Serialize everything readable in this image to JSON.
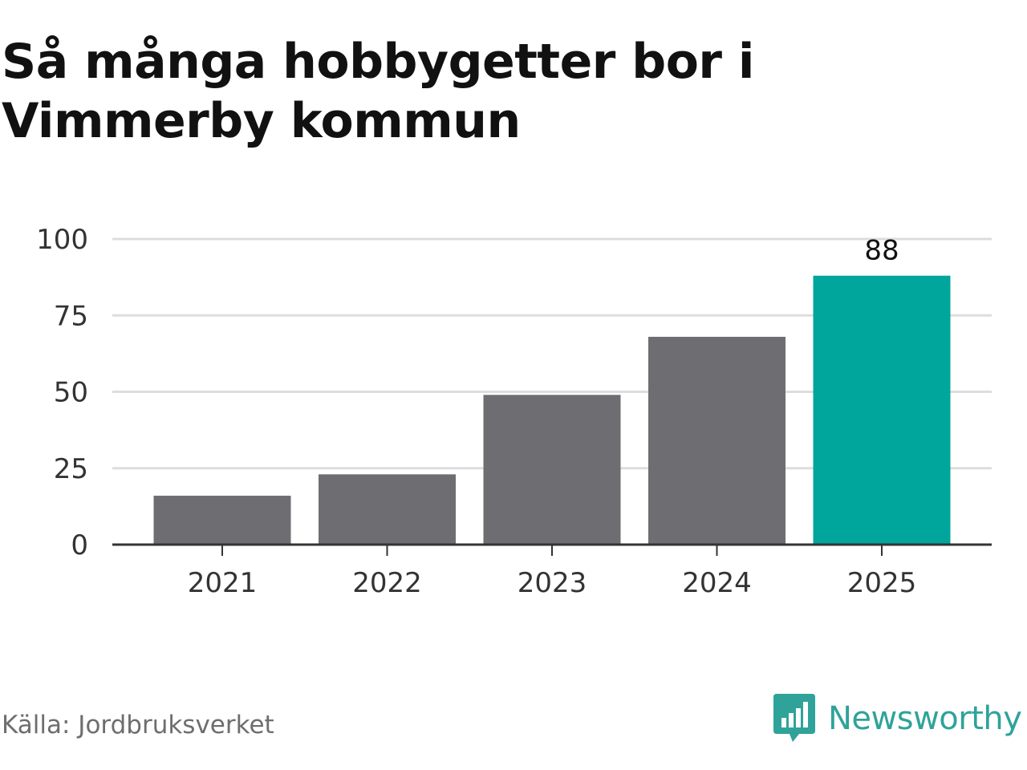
{
  "title": "Så många hobbygetter bor i Vimmerby kommun",
  "source": "Källa: Jordbruksverket",
  "logo": {
    "name": "Newsworthy",
    "icon": "newsworthy-logo-icon",
    "color": "#2fa39a"
  },
  "colors": {
    "bar": "#6e6d72",
    "highlight": "#00a59b",
    "grid": "#dddddd",
    "axis": "#333333"
  },
  "chart_data": {
    "type": "bar",
    "categories": [
      "2021",
      "2022",
      "2023",
      "2024",
      "2025"
    ],
    "values": [
      16,
      23,
      49,
      68,
      88
    ],
    "highlight_index": 4,
    "data_labels": {
      "2025": "88"
    },
    "yticks": [
      0,
      25,
      50,
      75,
      100
    ],
    "ylim": [
      0,
      100
    ],
    "grid": true,
    "xlabel": "",
    "ylabel": ""
  }
}
